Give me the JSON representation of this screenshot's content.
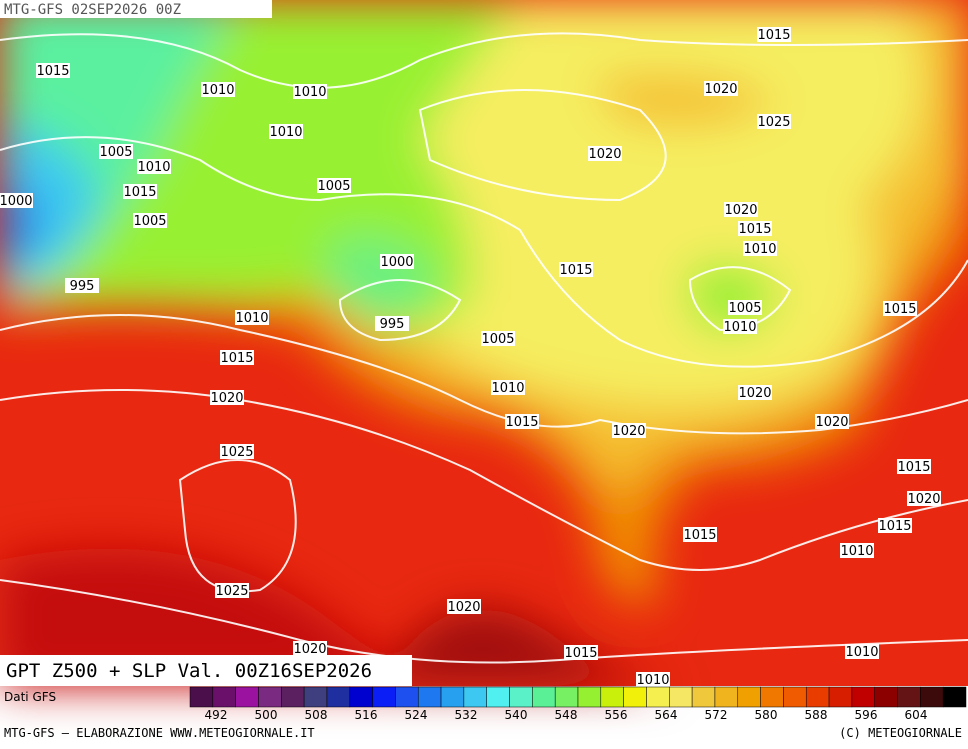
{
  "header": {
    "run": "MTG-GFS 02SEP2026 00Z"
  },
  "title": "GPT Z500 + SLP Val. 00Z16SEP2026",
  "source": "Dati GFS",
  "footer": {
    "left": "MTG-GFS – ELABORAZIONE WWW.METEOGIORNALE.IT",
    "right": "(C) METEOGIORNALE"
  },
  "colorbar": {
    "colors": [
      "#4b0f4b",
      "#6a106a",
      "#9b12a0",
      "#7a2a80",
      "#5a2060",
      "#3f3f7f",
      "#1f2f9f",
      "#0000cf",
      "#0a1ef5",
      "#1e50f0",
      "#1e78f0",
      "#28a0f0",
      "#3cc8f0",
      "#50f0f0",
      "#5af0c8",
      "#5af096",
      "#78f064",
      "#96f032",
      "#c8f00a",
      "#f0f00a",
      "#f5f050",
      "#f5e664",
      "#f0c83c",
      "#f0b41e",
      "#f0a000",
      "#f07800",
      "#f05a00",
      "#e83c00",
      "#d81e00",
      "#c00000",
      "#8c0000",
      "#641414",
      "#3c0a0a",
      "#000000"
    ],
    "labels": [
      492,
      500,
      508,
      516,
      524,
      532,
      540,
      548,
      556,
      564,
      572,
      580,
      588,
      596,
      604
    ]
  },
  "isobar_labels": [
    1015,
    1015,
    1010,
    1010,
    1020,
    1025,
    1010,
    1005,
    1010,
    1020,
    1015,
    1000,
    1005,
    1005,
    1020,
    1015,
    1010,
    1000,
    1015,
    995,
    1005,
    1015,
    1010,
    995,
    1010,
    1005,
    1015,
    1010,
    1020,
    1020,
    1015,
    1020,
    1020,
    1025,
    1015,
    1020,
    1015,
    1015,
    1010,
    1025,
    1020,
    1020,
    1015,
    1010,
    1010
  ]
}
